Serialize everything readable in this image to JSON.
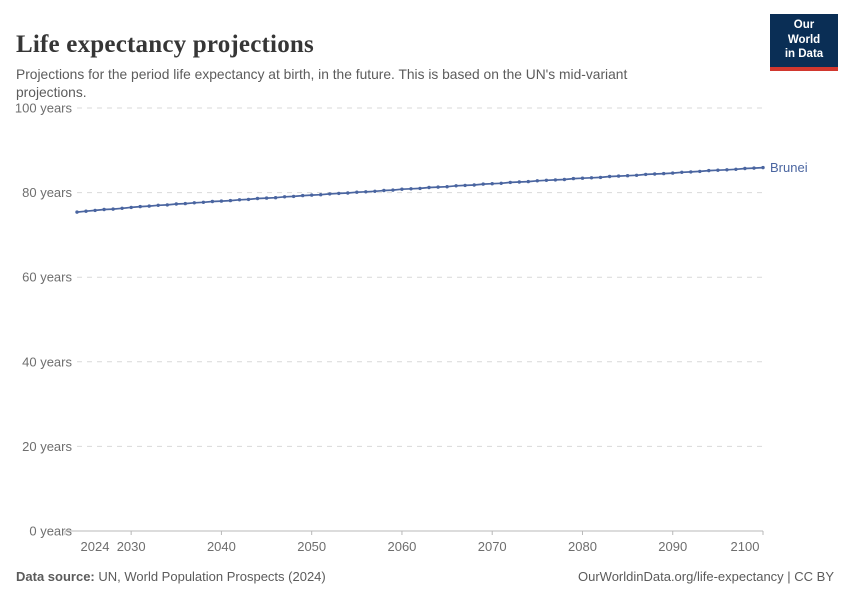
{
  "header": {
    "title": "Life expectancy projections",
    "subtitle": "Projections for the period life expectancy at birth, in the future. This is based on the UN's mid-variant projections.",
    "logo": {
      "line1": "Our World",
      "line2": "in Data",
      "bg_color": "#0a2e55",
      "bar_color": "#d1372e"
    }
  },
  "footer": {
    "source_label": "Data source:",
    "source_text": " UN, World Population Prospects (2024)",
    "right_text": "OurWorldinData.org/life-expectancy | CC BY"
  },
  "chart_data": {
    "type": "line",
    "title": "Life expectancy projections",
    "xlabel": "",
    "ylabel": "years",
    "ylim": [
      0,
      100
    ],
    "xlim": [
      2023,
      2100
    ],
    "grid": "horizontal-dashed",
    "legend_position": "end-of-line label",
    "y_ticks": [
      0,
      20,
      40,
      60,
      80,
      100
    ],
    "y_tick_labels": [
      "0 years",
      "20 years",
      "40 years",
      "60 years",
      "80 years",
      "100 years"
    ],
    "x_ticks": [
      2024,
      2030,
      2040,
      2050,
      2060,
      2070,
      2080,
      2090,
      2100
    ],
    "x_tick_labels": [
      "2024",
      "2030",
      "2040",
      "2050",
      "2060",
      "2070",
      "2080",
      "2090",
      "2100"
    ],
    "series": [
      {
        "name": "Brunei",
        "color": "#4a65a0",
        "marker": "dot",
        "x": [
          2024,
          2025,
          2026,
          2027,
          2028,
          2029,
          2030,
          2031,
          2032,
          2033,
          2034,
          2035,
          2036,
          2037,
          2038,
          2039,
          2040,
          2041,
          2042,
          2043,
          2044,
          2045,
          2046,
          2047,
          2048,
          2049,
          2050,
          2051,
          2052,
          2053,
          2054,
          2055,
          2056,
          2057,
          2058,
          2059,
          2060,
          2061,
          2062,
          2063,
          2064,
          2065,
          2066,
          2067,
          2068,
          2069,
          2070,
          2071,
          2072,
          2073,
          2074,
          2075,
          2076,
          2077,
          2078,
          2079,
          2080,
          2081,
          2082,
          2083,
          2084,
          2085,
          2086,
          2087,
          2088,
          2089,
          2090,
          2091,
          2092,
          2093,
          2094,
          2095,
          2096,
          2097,
          2098,
          2099,
          2100
        ],
        "values": [
          75.4,
          75.6,
          75.8,
          76.0,
          76.1,
          76.3,
          76.5,
          76.7,
          76.8,
          77.0,
          77.1,
          77.3,
          77.4,
          77.6,
          77.7,
          77.9,
          78.0,
          78.1,
          78.3,
          78.4,
          78.6,
          78.7,
          78.8,
          79.0,
          79.1,
          79.3,
          79.4,
          79.5,
          79.7,
          79.8,
          79.9,
          80.1,
          80.2,
          80.3,
          80.5,
          80.6,
          80.8,
          80.9,
          81.0,
          81.2,
          81.3,
          81.4,
          81.6,
          81.7,
          81.8,
          82.0,
          82.1,
          82.2,
          82.4,
          82.5,
          82.6,
          82.8,
          82.9,
          83.0,
          83.1,
          83.3,
          83.4,
          83.5,
          83.6,
          83.8,
          83.9,
          84.0,
          84.1,
          84.3,
          84.4,
          84.5,
          84.6,
          84.8,
          84.9,
          85.0,
          85.2,
          85.3,
          85.4,
          85.5,
          85.7,
          85.8,
          85.9
        ]
      }
    ]
  },
  "colors": {
    "series_blue": "#4a65a0",
    "grid_gray": "#d9d9d9",
    "axis_gray": "#b8b8b8",
    "tick_text": "#6e6e6e",
    "logo_navy": "#0a2e55",
    "logo_red": "#d1372e"
  }
}
